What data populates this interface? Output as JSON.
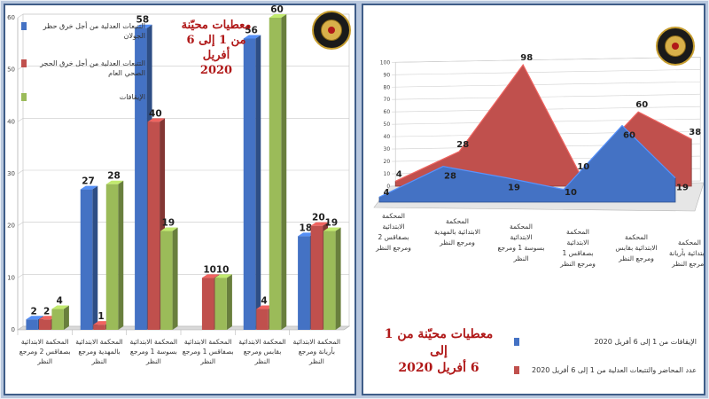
{
  "left": {
    "title_lines": [
      "معطيات محيّنة",
      "من 1 إلى 6 أفريل",
      "2020"
    ],
    "legend": [
      {
        "label_lines": [
          "التتبعات العدلية من أجل خرق حظر",
          "الجولان"
        ],
        "color": "#4472c4"
      },
      {
        "label_lines": [
          "التتبعات العدلية من أجل خرق الحجر",
          "الصحي العام"
        ],
        "color": "#c0504d"
      },
      {
        "label_lines": [
          "الإيقافات"
        ],
        "color": "#9bbb59"
      }
    ]
  },
  "right": {
    "title_lines": [
      "معطيات محيّنة من 1 إلى",
      "6 أفريل 2020"
    ],
    "legend": [
      {
        "label": "الإيقافات من 1 إلى 6 أفريل 2020",
        "color": "#4472c4"
      },
      {
        "label": "عدد المحاضر والتتبعات العدلية من 1 إلى 6 أفريل 2020",
        "color": "#c0504d"
      }
    ]
  },
  "chart_data": [
    {
      "type": "bar",
      "categories": [
        [
          "المحكمة الابتدائية",
          "بصفاقس 2 ومرجع",
          "النظر"
        ],
        [
          "المحكمة الابتدائية",
          "بالمهدية ومرجع",
          "النظر"
        ],
        [
          "المحكمة الابتدائية",
          "بسوسة 1 ومرجع",
          "النظر"
        ],
        [
          "المحكمة الابتدائية",
          "بصفاقس 1 ومرجع",
          "النظر"
        ],
        [
          "المحكمة الابتدائية",
          "بقابس ومرجع",
          "النظر"
        ],
        [
          "المحكمة الابتدائية",
          "بأريانة ومرجع",
          "النظر"
        ]
      ],
      "series": [
        {
          "name": "التتبعات العدلية من أجل خرق حظر الجولان",
          "values": [
            2,
            27,
            58,
            null,
            56,
            18
          ],
          "labels": [
            "2",
            "27",
            "58",
            "",
            "56",
            "18"
          ]
        },
        {
          "name": "التتبعات العدلية من أجل خرق الحجر الصحي العام",
          "values": [
            2,
            1,
            40,
            10,
            4,
            20
          ],
          "labels": [
            "2",
            "1",
            "40",
            "10",
            "4",
            "20"
          ]
        },
        {
          "name": "الإيقافات",
          "values": [
            4,
            28,
            19,
            10,
            60,
            19
          ],
          "labels": [
            "4",
            "28",
            "19",
            "10",
            "60",
            "19"
          ]
        }
      ],
      "ylim": [
        0,
        60
      ],
      "yticks": [
        "0",
        "10",
        "20",
        "30",
        "40",
        "50",
        "60"
      ],
      "grid": true,
      "legend_position": "top-left"
    },
    {
      "type": "area",
      "categories": [
        [
          "المحكمة",
          "الابتدائية",
          "بصفاقس 2",
          "ومرجع النظر"
        ],
        [
          "المحكمة",
          "الابتدائية بالمهدية",
          "ومرجع النظر"
        ],
        [
          "المحكمة",
          "الابتدائية",
          "بسوسة 1 ومرجع",
          "النظر"
        ],
        [
          "المحكمة",
          "الابتدائية",
          "بصفاقس 1",
          "ومرجع النظر"
        ],
        [
          "المحكمة",
          "الابتدائية بقابس",
          "ومرجع النظر"
        ],
        [
          "المحكمة",
          "الابتدائية بأريانة",
          "ومرجع النظر"
        ]
      ],
      "series": [
        {
          "name": "الإيقافات من 1 إلى 6 أفريل 2020",
          "values": [
            4,
            28,
            19,
            10,
            60,
            19
          ]
        },
        {
          "name": "عدد المحاضر والتتبعات العدلية من 1 إلى 6 أفريل 2020",
          "values": [
            4,
            28,
            98,
            10,
            60,
            38
          ]
        }
      ],
      "ylim": [
        0,
        100
      ],
      "yticks": [
        "0",
        "10",
        "20",
        "30",
        "40",
        "50",
        "60",
        "70",
        "80",
        "90",
        "100"
      ],
      "grid": true,
      "legend_position": "bottom-right"
    }
  ]
}
